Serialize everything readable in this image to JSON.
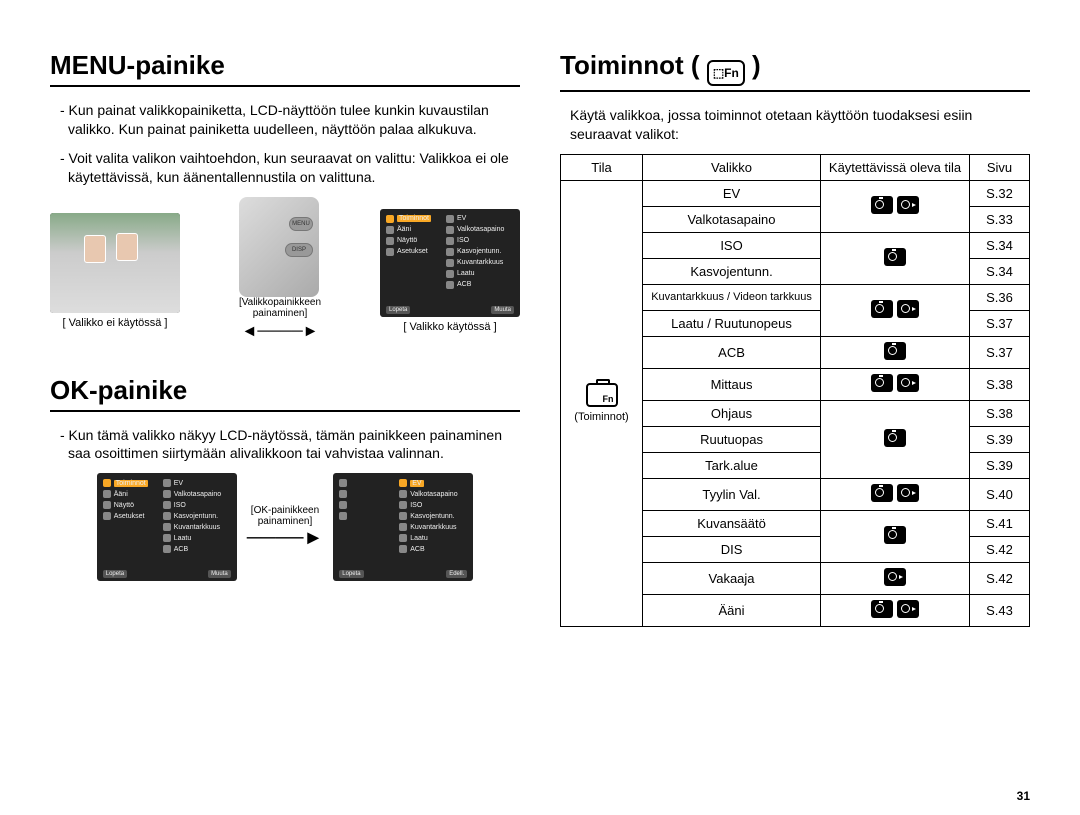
{
  "left": {
    "h1": "MENU-painike",
    "p1": "- Kun painat valikkopainiketta, LCD-näyttöön tulee kunkin kuvaustilan valikko. Kun painat painiketta uudelleen, näyttöön palaa alkukuva.",
    "p2": "- Voit valita valikon vaihtoehdon, kun seuraavat on valittu: Valikkoa ei ole käytettävissä, kun äänentallennustila on valittuna.",
    "fig_center_line1": "[Valikkopainikkeen",
    "fig_center_line2": "painaminen]",
    "cap_left": "[ Valikko ei käytössä ]",
    "cap_right": "[ Valikko käytössä ]",
    "h2": "OK-painike",
    "p3": "- Kun tämä valikko näkyy LCD-näytössä, tämän painikkeen painaminen saa osoittimen siirtymään alivalikkoon tai vahvistaa valinnan.",
    "fig2_label1": "[OK-painikkeen",
    "fig2_label2": "painaminen]",
    "menu_hdr": "Toiminnot",
    "menu_items_left": [
      "Ääni",
      "Näyttö",
      "Asetukset"
    ],
    "menu_items_right": [
      "EV",
      "Valkotasapaino",
      "ISO",
      "Kasvojentunn.",
      "Kuvantarkkuus",
      "Laatu",
      "ACB"
    ],
    "foot_l": "Lopeta",
    "foot_r1": "Muuta",
    "foot_r2": "Edell."
  },
  "right": {
    "h1_pre": "Toiminnot ( ",
    "h1_post": " )",
    "intro": "Käytä valikkoa, jossa toiminnot otetaan käyttöön tuodaksesi esiin seuraavat valikot:",
    "th": [
      "Tila",
      "Valikko",
      "Käytettävissä oleva tila",
      "Sivu"
    ],
    "tila_label": "(Toiminnot)",
    "rows": [
      {
        "m": "EV",
        "modes": "cv",
        "page": "S.32"
      },
      {
        "m": "Valkotasapaino",
        "modes": "cv",
        "page": "S.33"
      },
      {
        "m": "ISO",
        "modes": "c",
        "page": "S.34"
      },
      {
        "m": "Kasvojentunn.",
        "modes": "c",
        "page": "S.34"
      },
      {
        "m": "Kuvantarkkuus / Videon tarkkuus",
        "modes": "cv",
        "page": "S.36"
      },
      {
        "m": "Laatu / Ruutunopeus",
        "modes": "cv",
        "page": "S.37"
      },
      {
        "m": "ACB",
        "modes": "c",
        "page": "S.37"
      },
      {
        "m": "Mittaus",
        "modes": "cv",
        "page": "S.38"
      },
      {
        "m": "Ohjaus",
        "modes": "c",
        "page": "S.38"
      },
      {
        "m": "Ruutuopas",
        "modes": "c",
        "page": "S.39"
      },
      {
        "m": "Tark.alue",
        "modes": "c",
        "page": "S.39"
      },
      {
        "m": "Tyylin Val.",
        "modes": "cv",
        "page": "S.40"
      },
      {
        "m": "Kuvansäätö",
        "modes": "c",
        "page": "S.41"
      },
      {
        "m": "DIS",
        "modes": "c",
        "page": "S.42"
      },
      {
        "m": "Vakaaja",
        "modes": "v",
        "page": "S.42"
      },
      {
        "m": "Ääni",
        "modes": "cv",
        "page": "S.43"
      }
    ]
  },
  "pagenum": "31"
}
